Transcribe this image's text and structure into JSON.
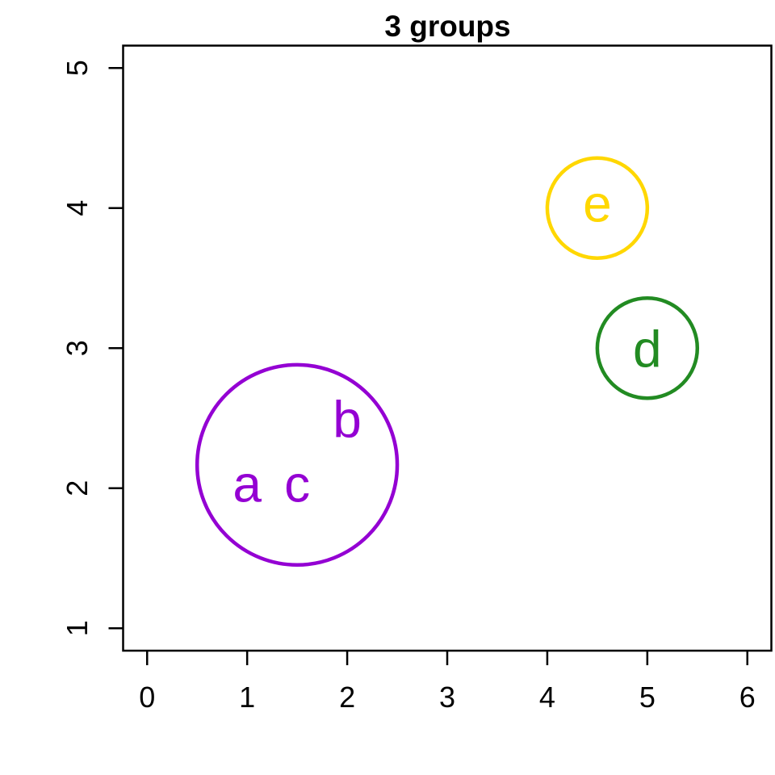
{
  "chart_data": {
    "type": "scatter",
    "title": "3 groups",
    "xlabel": "",
    "ylabel": "",
    "xlim": [
      -0.24,
      6.24
    ],
    "ylim": [
      0.84,
      5.16
    ],
    "x_ticks": [
      0,
      1,
      2,
      3,
      4,
      5,
      6
    ],
    "y_ticks": [
      1,
      2,
      3,
      4,
      5
    ],
    "grid": "off",
    "legend": "none",
    "axis_color": "#000000",
    "background_color": "#ffffff",
    "points": [
      {
        "label": "a",
        "x": 1.0,
        "y": 2.0,
        "group": 1
      },
      {
        "label": "b",
        "x": 2.0,
        "y": 2.5,
        "group": 1
      },
      {
        "label": "c",
        "x": 1.5,
        "y": 2.0,
        "group": 1
      },
      {
        "label": "d",
        "x": 5.0,
        "y": 3.0,
        "group": 2
      },
      {
        "label": "e",
        "x": 4.5,
        "y": 4.0,
        "group": 3
      }
    ],
    "groups": [
      {
        "id": 1,
        "members": [
          "a",
          "b",
          "c"
        ],
        "color": "#9400D3",
        "circle": {
          "cx": 1.5,
          "cy": 2.1667,
          "r": 1.0,
          "radius_units": "x-axis-units"
        }
      },
      {
        "id": 2,
        "members": [
          "d"
        ],
        "color": "#228B22",
        "circle": {
          "cx": 5.0,
          "cy": 3.0,
          "r": 0.5,
          "radius_units": "x-axis-units"
        }
      },
      {
        "id": 3,
        "members": [
          "e"
        ],
        "color": "#FFD700",
        "circle": {
          "cx": 4.5,
          "cy": 4.0,
          "r": 0.5,
          "radius_units": "x-axis-units"
        }
      }
    ]
  }
}
